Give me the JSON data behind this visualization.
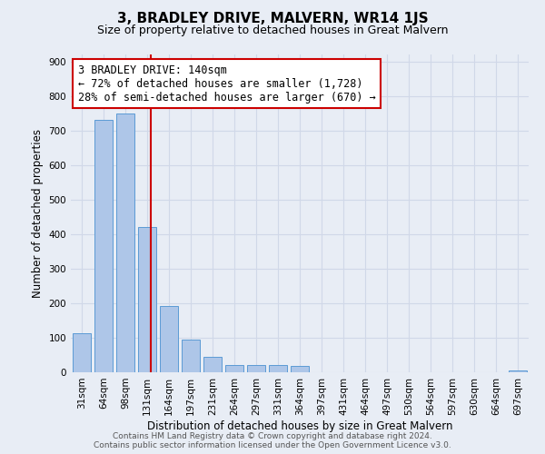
{
  "title": "3, BRADLEY DRIVE, MALVERN, WR14 1JS",
  "subtitle": "Size of property relative to detached houses in Great Malvern",
  "xlabel": "Distribution of detached houses by size in Great Malvern",
  "ylabel": "Number of detached properties",
  "bar_labels": [
    "31sqm",
    "64sqm",
    "98sqm",
    "131sqm",
    "164sqm",
    "197sqm",
    "231sqm",
    "264sqm",
    "297sqm",
    "331sqm",
    "364sqm",
    "397sqm",
    "431sqm",
    "464sqm",
    "497sqm",
    "530sqm",
    "564sqm",
    "597sqm",
    "630sqm",
    "664sqm",
    "697sqm"
  ],
  "bar_values": [
    113,
    730,
    750,
    420,
    192,
    94,
    46,
    22,
    20,
    20,
    18,
    0,
    0,
    0,
    0,
    0,
    0,
    0,
    0,
    0,
    5
  ],
  "bar_color": "#aec6e8",
  "bar_edge_color": "#5b9bd5",
  "property_line_label": "3 BRADLEY DRIVE: 140sqm",
  "annotation_line1": "← 72% of detached houses are smaller (1,728)",
  "annotation_line2": "28% of semi-detached houses are larger (670) →",
  "annotation_box_color": "#ffffff",
  "annotation_box_edge": "#cc0000",
  "vline_color": "#cc0000",
  "vline_x": 3.15,
  "ylim": [
    0,
    920
  ],
  "yticks": [
    0,
    100,
    200,
    300,
    400,
    500,
    600,
    700,
    800,
    900
  ],
  "grid_color": "#d0d8e8",
  "background_color": "#e8edf5",
  "footer_line1": "Contains HM Land Registry data © Crown copyright and database right 2024.",
  "footer_line2": "Contains public sector information licensed under the Open Government Licence v3.0.",
  "title_fontsize": 11,
  "subtitle_fontsize": 9,
  "axis_label_fontsize": 8.5,
  "tick_fontsize": 7.5,
  "annotation_fontsize": 8.5,
  "footer_fontsize": 6.5
}
